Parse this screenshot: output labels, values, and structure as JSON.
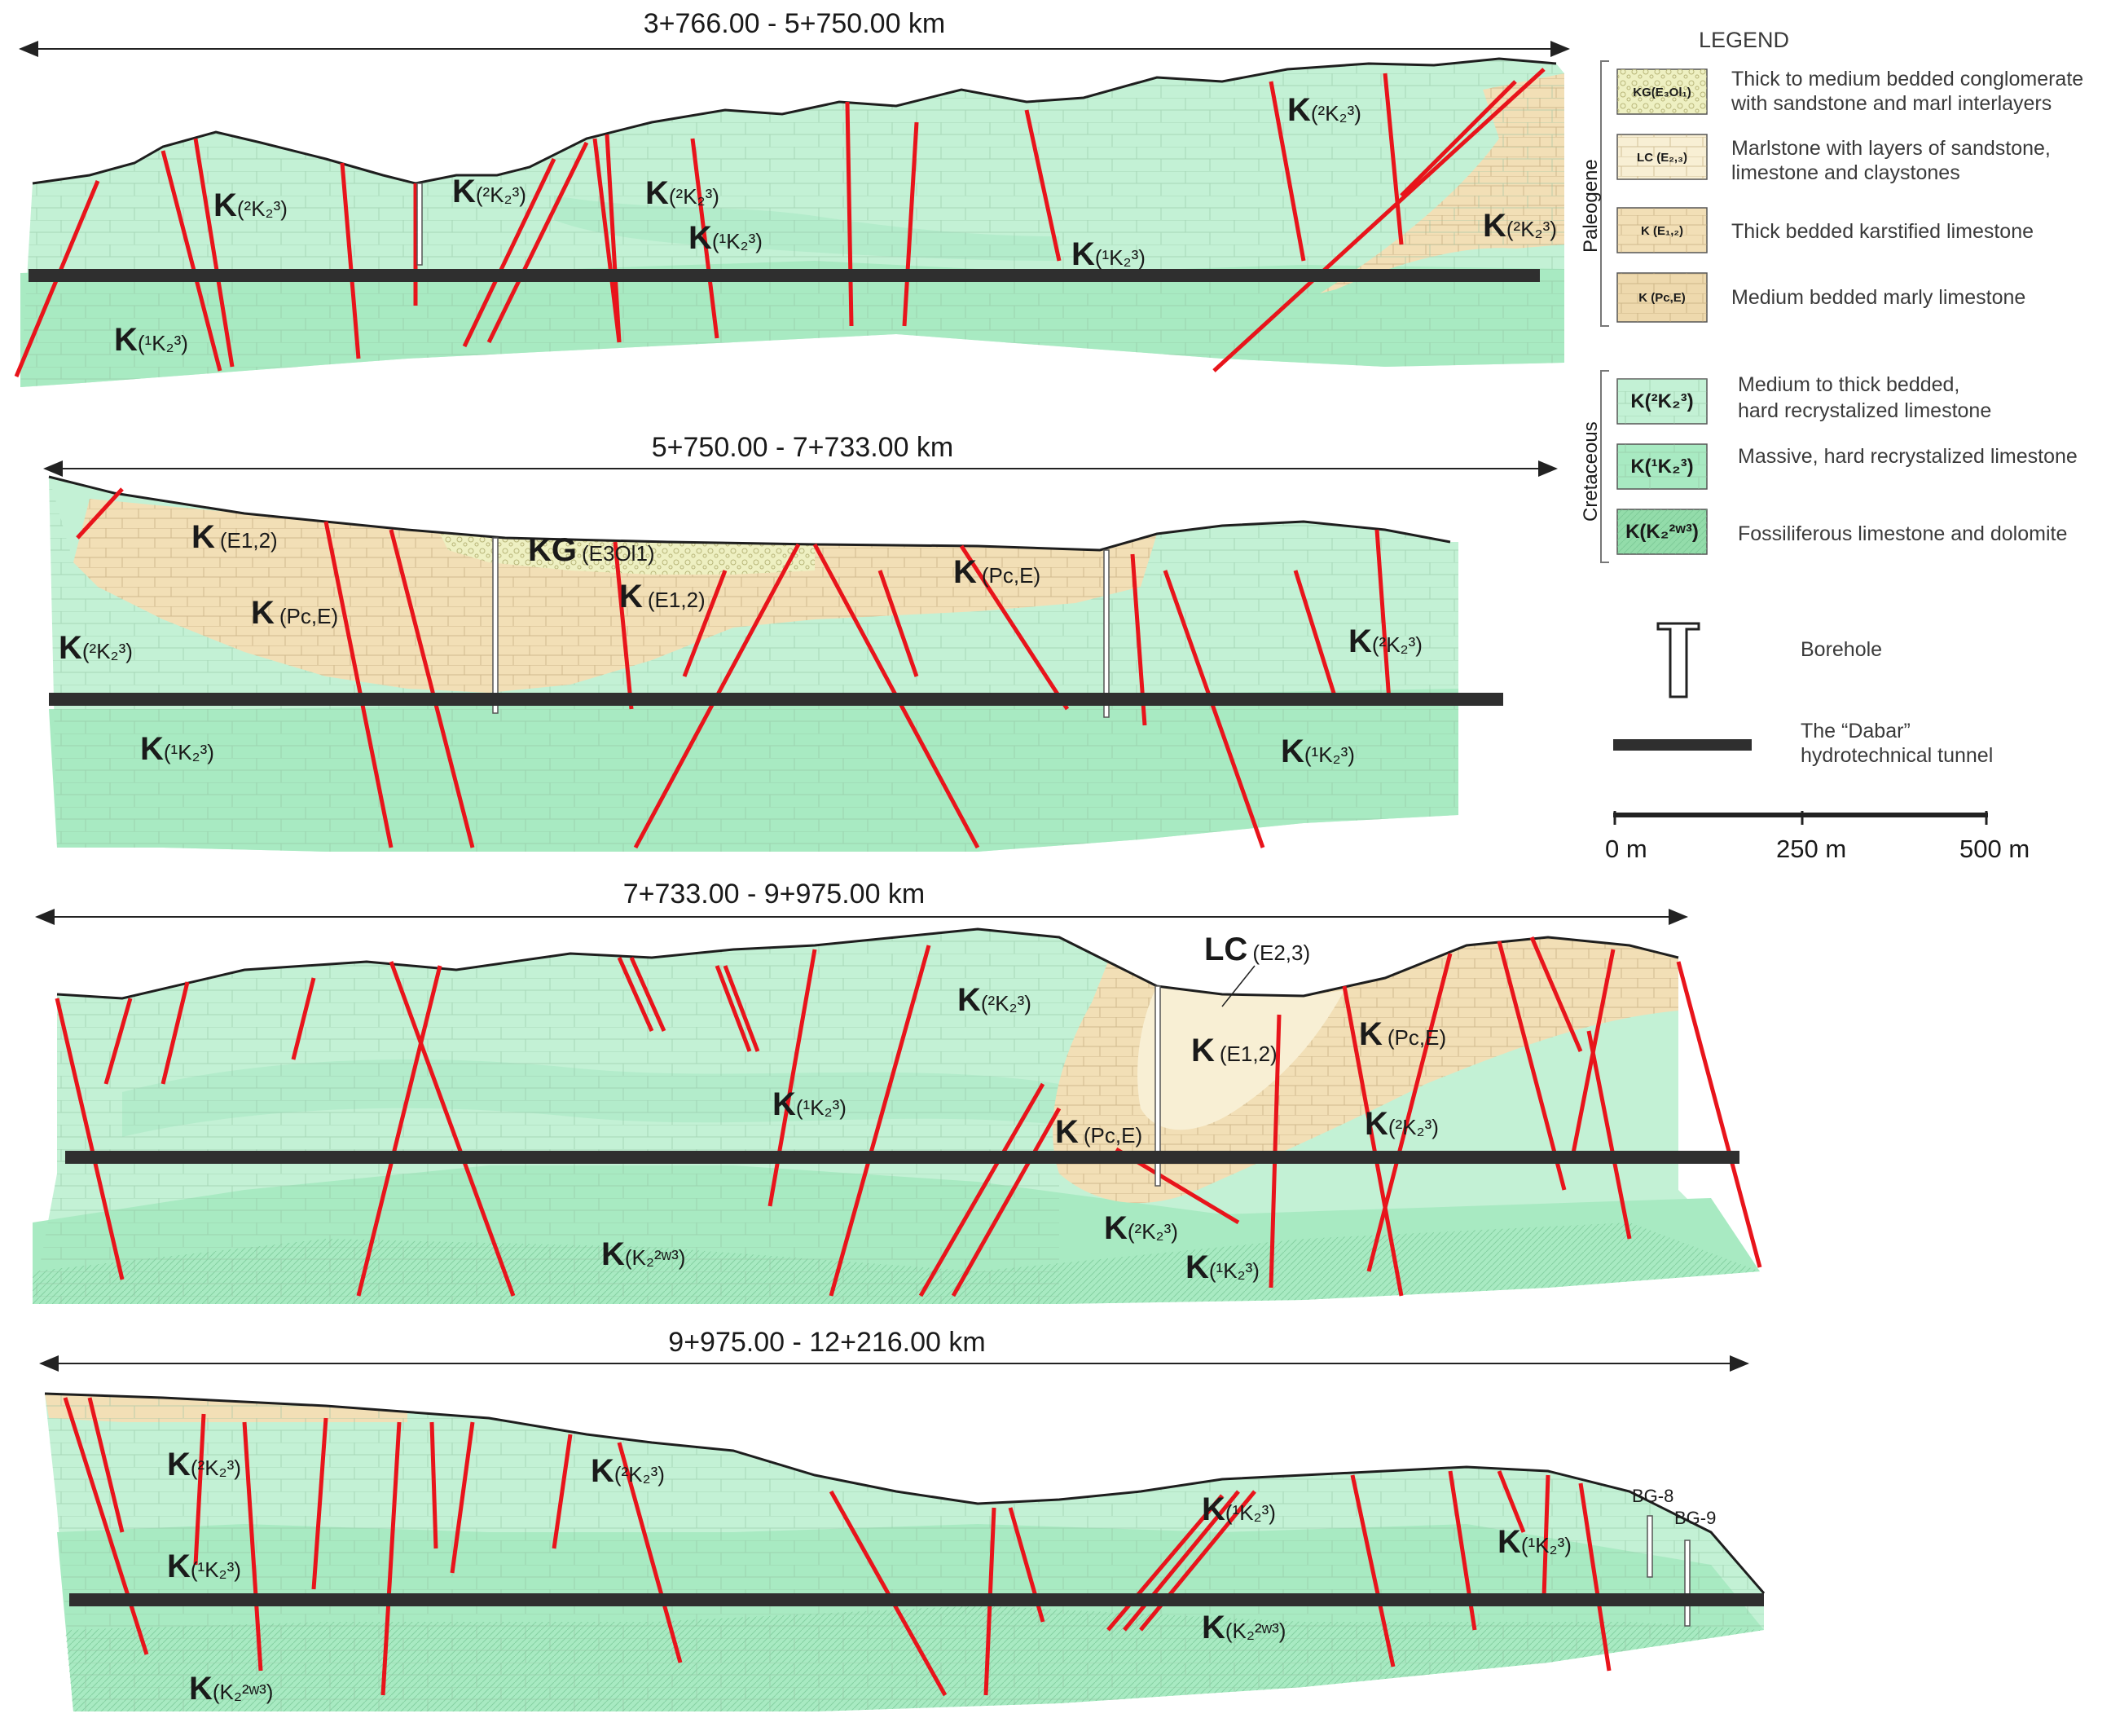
{
  "colors": {
    "cretaceous_light": "#c3f1d5",
    "cretaceous_mid": "#a8eac2",
    "cretaceous_dark": "#8fdca9",
    "paleogene_beige": "#f2dfb6",
    "paleogene_light": "#f8efd4",
    "conglomerate": "#eef0c2",
    "fault": "#e8141b",
    "tunnel": "#2f2f2f",
    "ground": "#1e1e1e"
  },
  "sections": [
    {
      "title": "3+766.00 - 5+750.00 km",
      "labels": [
        {
          "main": "K",
          "sub": "(²K₂³)"
        },
        {
          "main": "K",
          "sub": "(²K₂³)"
        },
        {
          "main": "K",
          "sub": "(²K₂³)"
        },
        {
          "main": "K",
          "sub": "(¹K₂³)"
        },
        {
          "main": "K",
          "sub": "(²K₂³)"
        },
        {
          "main": "K",
          "sub": "(¹K₂³)"
        },
        {
          "main": "K",
          "sub": "(²K₂³)"
        },
        {
          "main": "K",
          "sub": "(¹K₂³)"
        }
      ]
    },
    {
      "title": "5+750.00 - 7+733.00 km",
      "labels": [
        {
          "main": "K",
          "sub": "(E1,2)"
        },
        {
          "main": "KG",
          "sub": "(E3Ol1)"
        },
        {
          "main": "K",
          "sub": "(E1,2)"
        },
        {
          "main": "K",
          "sub": "(Pc,E)"
        },
        {
          "main": "K",
          "sub": "(Pc,E)"
        },
        {
          "main": "K",
          "sub": "(²K₂³)"
        },
        {
          "main": "K",
          "sub": "(¹K₂³)"
        },
        {
          "main": "K",
          "sub": "(²K₂³)"
        },
        {
          "main": "K",
          "sub": "(¹K₂³)"
        }
      ]
    },
    {
      "title": "7+733.00 - 9+975.00 km",
      "labels": [
        {
          "main": "LC",
          "sub": "(E2,3)"
        },
        {
          "main": "K",
          "sub": "(²K₂³)"
        },
        {
          "main": "K",
          "sub": "(E1,2)"
        },
        {
          "main": "K",
          "sub": "(Pc,E)"
        },
        {
          "main": "K",
          "sub": "(¹K₂³)"
        },
        {
          "main": "K",
          "sub": "(Pc,E)"
        },
        {
          "main": "K",
          "sub": "(²K₂³)"
        },
        {
          "main": "K",
          "sub": "(²K₂³)"
        },
        {
          "main": "K",
          "sub": "(K₂²ʷ³)"
        },
        {
          "main": "K",
          "sub": "(¹K₂³)"
        }
      ]
    },
    {
      "title": "9+975.00 - 12+216.00 km",
      "labels": [
        {
          "main": "K",
          "sub": "(²K₂³)"
        },
        {
          "main": "K",
          "sub": "(²K₂³)"
        },
        {
          "main": "K",
          "sub": "(¹K₂³)"
        },
        {
          "main": "K",
          "sub": "(¹K₂³)"
        },
        {
          "main": "K",
          "sub": "(¹K₂³)"
        },
        {
          "main": "K",
          "sub": "(K₂²ʷ³)"
        },
        {
          "main": "K",
          "sub": "(K₂²ʷ³)"
        }
      ],
      "boreholes": [
        "BG-8",
        "BG-9"
      ]
    }
  ],
  "legend": {
    "title": "LEGEND",
    "group_paleogene": "Paleogene",
    "group_cretaceous": "Cretaceous",
    "items": [
      {
        "code": "KG(E₃Ol₁)",
        "text1": "Thick to medium bedded conglomerate",
        "text2": "with sandstone and marl interlayers",
        "fill": "#eef0c2"
      },
      {
        "code": "LC (E₂,₃)",
        "text1": "Marlstone with layers of sandstone,",
        "text2": "limestone and claystones",
        "fill": "#f8efd4"
      },
      {
        "code": "K (E₁,₂)",
        "text1": "Thick bedded karstified limestone",
        "text2": "",
        "fill": "#f2dfb6"
      },
      {
        "code": "K (Pc,E)",
        "text1": "Medium bedded marly limestone",
        "text2": "",
        "fill": "#eed9ad"
      },
      {
        "code": "K(²K₂³)",
        "text1": "Medium to thick bedded,",
        "text2": "hard recrystalized limestone",
        "fill": "#c3f1d5"
      },
      {
        "code": "K(¹K₂³)",
        "text1": "Massive, hard recrystalized limestone",
        "text2": "",
        "fill": "#a8eac2"
      },
      {
        "code": "K(K₂²ʷ³)",
        "text1": "Fossiliferous limestone and dolomite",
        "text2": "",
        "fill": "#93dcaa"
      }
    ],
    "borehole_label": "Borehole",
    "tunnel_label_1": "The “Dabar”",
    "tunnel_label_2": "hydrotechnical tunnel",
    "scale_ticks": [
      "0 m",
      "250 m",
      "500 m"
    ]
  }
}
